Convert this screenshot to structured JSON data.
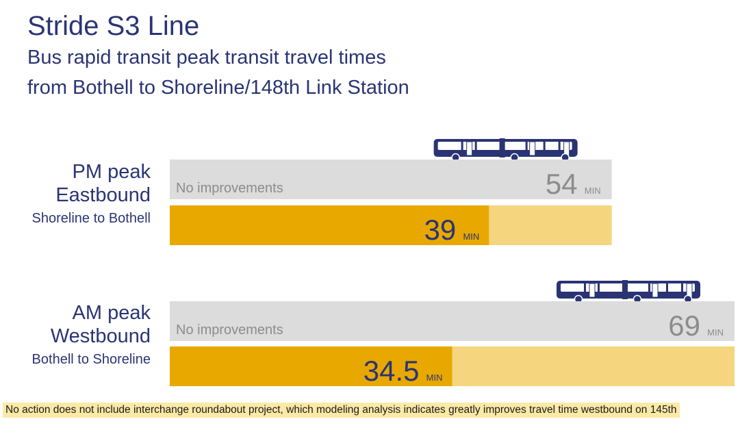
{
  "title": "Stride S3 Line",
  "subtitle_line1": "Bus rapid transit peak transit travel times",
  "subtitle_line2": "from Bothell to Shoreline/148th Link Station",
  "groups": [
    {
      "label_line1": "PM peak",
      "label_line2": "Eastbound",
      "label_line3": "Shoreline to Bothell"
    },
    {
      "label_line1": "AM peak",
      "label_line2": "Westbound",
      "label_line3": "Bothell to Shoreline"
    }
  ],
  "note": "No action does not include interchange roundabout project, which modeling analysis indicates greatly improves travel time westbound on 145th",
  "colors": {
    "title": "#2a3474",
    "baseline_bar": "#dcdcdc",
    "baseline_text": "#8c8c8c",
    "improved_bar": "#e8a800",
    "improved_track": "#f5d57e",
    "improved_text": "#2a3474",
    "bus": "#2a3474",
    "note_highlight": "#fbe9a6"
  },
  "chart_data": {
    "type": "bar",
    "orientation": "horizontal",
    "unit": "MIN",
    "series": [
      {
        "name": "No improvements",
        "values": [
          54,
          69
        ]
      },
      {
        "values": [
          39,
          34.5
        ]
      }
    ],
    "xlim": [
      0,
      69
    ],
    "grid": false,
    "icon": "articulated-bus-icon"
  }
}
